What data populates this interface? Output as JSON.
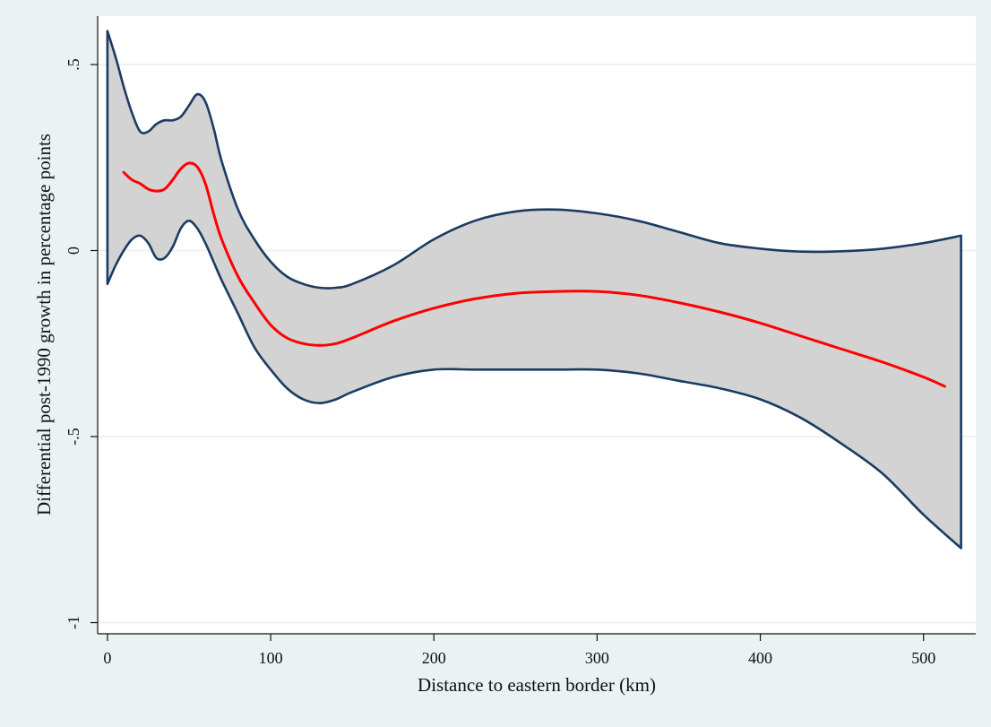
{
  "chart_data": {
    "type": "line",
    "xlabel": "Distance to eastern border (km)",
    "ylabel": "Differential post-1990 growth in percentage points",
    "xlim": [
      -6,
      532
    ],
    "ylim": [
      -1.03,
      0.63
    ],
    "x_ticks": [
      0,
      100,
      200,
      300,
      400,
      500
    ],
    "x_tick_labels": [
      "0",
      "100",
      "200",
      "300",
      "400",
      "500"
    ],
    "y_ticks": [
      -1,
      -0.5,
      0,
      0.5
    ],
    "y_tick_labels": [
      "-1",
      "-.5",
      "0",
      ".5"
    ],
    "grid": true,
    "legend": "none",
    "colors": {
      "background": "#eaf2f3",
      "plot_background": "#ffffff",
      "grid": "#e6eef0",
      "band_fill": "#d3d3d3",
      "band_edge": "#1c3b63",
      "estimate": "#ff0000"
    },
    "confidence_band": {
      "x": [
        0,
        5,
        10,
        15,
        20,
        25,
        30,
        35,
        40,
        45,
        50,
        55,
        60,
        65,
        70,
        80,
        90,
        100,
        110,
        120,
        130,
        140,
        150,
        175,
        200,
        225,
        250,
        275,
        300,
        325,
        350,
        375,
        400,
        425,
        450,
        475,
        500,
        523
      ],
      "upper": [
        0.59,
        0.52,
        0.44,
        0.37,
        0.32,
        0.32,
        0.34,
        0.35,
        0.35,
        0.36,
        0.39,
        0.42,
        0.4,
        0.33,
        0.24,
        0.11,
        0.03,
        -0.03,
        -0.07,
        -0.09,
        -0.1,
        -0.1,
        -0.09,
        -0.04,
        0.03,
        0.08,
        0.105,
        0.11,
        0.1,
        0.08,
        0.05,
        0.02,
        0.005,
        -0.003,
        -0.002,
        0.005,
        0.02,
        0.04
      ],
      "lower": [
        -0.09,
        -0.04,
        0.0,
        0.03,
        0.04,
        0.02,
        -0.02,
        -0.02,
        0.01,
        0.06,
        0.08,
        0.06,
        0.02,
        -0.03,
        -0.08,
        -0.17,
        -0.26,
        -0.32,
        -0.37,
        -0.4,
        -0.41,
        -0.4,
        -0.38,
        -0.34,
        -0.32,
        -0.32,
        -0.32,
        -0.32,
        -0.32,
        -0.33,
        -0.35,
        -0.37,
        -0.4,
        -0.45,
        -0.52,
        -0.6,
        -0.71,
        -0.8
      ]
    },
    "series": [
      {
        "x": [
          10,
          15,
          20,
          25,
          30,
          35,
          40,
          45,
          50,
          55,
          60,
          65,
          70,
          80,
          90,
          100,
          110,
          120,
          130,
          140,
          150,
          175,
          200,
          225,
          250,
          275,
          300,
          325,
          350,
          375,
          400,
          425,
          450,
          475,
          500,
          513
        ],
        "values": [
          0.21,
          0.19,
          0.18,
          0.165,
          0.16,
          0.165,
          0.19,
          0.22,
          0.235,
          0.225,
          0.18,
          0.1,
          0.03,
          -0.07,
          -0.14,
          -0.2,
          -0.235,
          -0.25,
          -0.255,
          -0.25,
          -0.235,
          -0.19,
          -0.155,
          -0.13,
          -0.115,
          -0.11,
          -0.11,
          -0.12,
          -0.14,
          -0.165,
          -0.195,
          -0.23,
          -0.265,
          -0.3,
          -0.34,
          -0.365
        ]
      }
    ]
  }
}
